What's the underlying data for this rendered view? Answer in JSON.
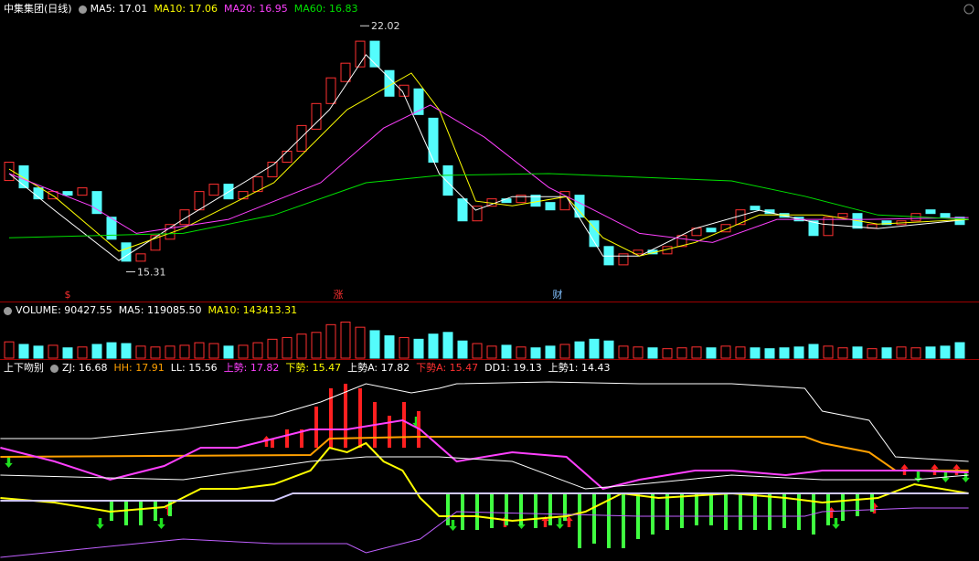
{
  "chart_data": [
    {
      "type": "candlestick",
      "title": "中集集团(日线)",
      "legend": [
        {
          "text": "MA5: 17.01",
          "color": "#ffffff"
        },
        {
          "text": "MA10: 17.06",
          "color": "#ffff00"
        },
        {
          "text": "MA20: 16.95",
          "color": "#ff40ff"
        },
        {
          "text": "MA60: 16.83",
          "color": "#00e000"
        }
      ],
      "ylim": [
        14.5,
        22.35
      ],
      "up_color": "#ff3030",
      "down_color": "#54fcfc",
      "open": [
        17.8,
        18.2,
        17.6,
        17.3,
        17.5,
        17.4,
        17.5,
        16.8,
        16.1,
        15.6,
        15.9,
        16.2,
        16.6,
        17.0,
        17.4,
        17.7,
        17.3,
        17.5,
        17.9,
        18.3,
        18.6,
        19.2,
        19.9,
        20.5,
        20.9,
        21.6,
        20.8,
        20.1,
        20.3,
        19.5,
        18.2,
        17.3,
        16.7,
        17.1,
        17.3,
        17.2,
        17.4,
        17.2,
        17.0,
        17.4,
        16.7,
        16.0,
        15.5,
        15.8,
        15.9,
        15.8,
        16.0,
        16.3,
        16.5,
        16.4,
        16.6,
        17.1,
        17.0,
        16.9,
        16.8,
        16.7,
        16.3,
        16.8,
        16.9,
        16.5,
        16.7,
        16.6,
        16.7,
        17.0,
        16.9,
        16.8
      ],
      "close": [
        18.3,
        17.6,
        17.3,
        17.5,
        17.4,
        17.6,
        16.9,
        16.2,
        15.6,
        15.8,
        16.3,
        16.6,
        17.0,
        17.5,
        17.7,
        17.3,
        17.5,
        17.9,
        18.3,
        18.6,
        19.3,
        19.9,
        20.6,
        21.0,
        21.6,
        20.9,
        20.1,
        20.4,
        19.6,
        18.3,
        17.4,
        16.7,
        17.1,
        17.3,
        17.2,
        17.4,
        17.1,
        17.0,
        17.5,
        16.8,
        16.0,
        15.5,
        15.8,
        15.9,
        15.8,
        16.0,
        16.3,
        16.5,
        16.4,
        16.6,
        17.0,
        17.0,
        16.9,
        16.8,
        16.7,
        16.3,
        16.8,
        16.9,
        16.5,
        16.6,
        16.6,
        16.7,
        16.9,
        16.9,
        16.8,
        16.6
      ],
      "series": [
        {
          "color": "#ffffff",
          "x": [
            0,
            3.1,
            7.5,
            11.9,
            18.1,
            21.9,
            24.4,
            26.9,
            29.4,
            31.9,
            34.4,
            38.1,
            40.6,
            43.1,
            46.9,
            51.3,
            55.6,
            59.4,
            65.6
          ],
          "values": [
            17.99,
            16.99,
            15.62,
            16.74,
            18.24,
            19.73,
            21.23,
            20.23,
            17.99,
            16.99,
            17.36,
            17.36,
            15.74,
            15.74,
            16.49,
            16.99,
            16.61,
            16.49,
            16.74
          ]
        },
        {
          "color": "#ffff00",
          "x": [
            0,
            3.1,
            7.5,
            11.9,
            18.1,
            23.1,
            27.5,
            29.4,
            31.9,
            34.4,
            38.1,
            40.6,
            43.1,
            46.9,
            51.3,
            55.6,
            59.4,
            65.6
          ],
          "values": [
            18.11,
            17.36,
            15.87,
            16.49,
            17.74,
            19.73,
            20.73,
            19.73,
            17.24,
            17.11,
            17.36,
            16.24,
            15.74,
            16.11,
            16.86,
            16.86,
            16.61,
            16.74
          ]
        },
        {
          "color": "#ff40ff",
          "x": [
            0,
            5.6,
            8.7,
            15,
            21.3,
            25.6,
            28.8,
            32.5,
            36.9,
            40,
            43.1,
            48.1,
            52.5,
            58.8,
            65.6
          ],
          "values": [
            17.99,
            17.11,
            16.36,
            16.74,
            17.74,
            19.23,
            19.86,
            18.98,
            17.61,
            16.99,
            16.36,
            16.11,
            16.74,
            16.74,
            16.79
          ]
        },
        {
          "color": "#00e000",
          "x": [
            0,
            11.9,
            18.1,
            24.4,
            29.4,
            36.9,
            49.4,
            54.4,
            59.4,
            65.6
          ],
          "values": [
            16.24,
            16.36,
            16.86,
            17.74,
            17.94,
            17.99,
            17.79,
            17.37,
            16.86,
            16.74
          ]
        }
      ],
      "annotations": [
        {
          "x": 24,
          "value": 22.02
        },
        {
          "x": 8,
          "value": 15.31
        }
      ],
      "events": [
        {
          "x": 4,
          "text": "$",
          "color": "#ff3030"
        },
        {
          "x": 22.5,
          "text": "涨",
          "color": "#ff3030"
        },
        {
          "x": 37.5,
          "text": "财",
          "color": "#80c0ff"
        }
      ]
    },
    {
      "type": "bar",
      "legend": [
        {
          "text": "VOLUME: 90427.55",
          "color": "#ffffff"
        },
        {
          "text": "MA5: 119085.50",
          "color": "#ffffff"
        },
        {
          "text": "MA10: 143413.31",
          "color": "#ffff00"
        }
      ],
      "ylim": [
        0,
        250000
      ],
      "values": [
        95000,
        80000,
        70000,
        75000,
        60000,
        65000,
        80000,
        90000,
        85000,
        70000,
        65000,
        70000,
        75000,
        90000,
        85000,
        70000,
        75000,
        90000,
        110000,
        120000,
        140000,
        150000,
        195000,
        210000,
        180000,
        160000,
        130000,
        120000,
        110000,
        140000,
        150000,
        100000,
        85000,
        70000,
        75000,
        65000,
        60000,
        70000,
        80000,
        95000,
        110000,
        100000,
        70000,
        65000,
        60000,
        55000,
        60000,
        65000,
        60000,
        70000,
        65000,
        60000,
        55000,
        60000,
        65000,
        80000,
        70000,
        60000,
        65000,
        55000,
        60000,
        65000,
        60000,
        65000,
        70000,
        90427.55
      ]
    },
    {
      "type": "line",
      "title": "上下吻别",
      "legend": [
        {
          "text": "ZJ: 16.68",
          "color": "#ffffff"
        },
        {
          "text": "HH: 17.91",
          "color": "#ffa000"
        },
        {
          "text": "LL: 15.56",
          "color": "#ffffff"
        },
        {
          "text": "上勢: 17.82",
          "color": "#ff40ff"
        },
        {
          "text": "下勢: 15.47",
          "color": "#ffff00"
        },
        {
          "text": "上勢A: 17.82",
          "color": "#ffffff"
        },
        {
          "text": "下勢A: 15.47",
          "color": "#ff3030"
        },
        {
          "text": "DD1: 19.13",
          "color": "#ffffff"
        },
        {
          "text": "上勢1: 14.43",
          "color": "#ffffff"
        }
      ],
      "ylim": [
        12.25,
        22.7
      ],
      "bars": [
        {
          "color": "#ff2020",
          "base": 18.45,
          "x": [
            18,
            19,
            20,
            21,
            22,
            23,
            24,
            25,
            26,
            27,
            28
          ],
          "values": [
            18.95,
            19.45,
            19.45,
            20.7,
            21.7,
            21.95,
            21.7,
            20.95,
            20.2,
            20.95,
            20.45
          ]
        },
        {
          "color": "#40ff40",
          "base": 15.55,
          "x": [
            7,
            8,
            9,
            10,
            11
          ],
          "values": [
            14.45,
            14.2,
            14.2,
            14.45,
            14.7
          ]
        },
        {
          "color": "#40ff40",
          "base": 15.95,
          "x": [
            30,
            31,
            32,
            33,
            34,
            35,
            36,
            37,
            38,
            39,
            40,
            41,
            42,
            43,
            44,
            45,
            46,
            47,
            48,
            49,
            50,
            51,
            52,
            53,
            54,
            55,
            56,
            57,
            58,
            59
          ],
          "values": [
            14.2,
            13.95,
            13.95,
            14.05,
            14.2,
            14.2,
            14.05,
            14.2,
            14.45,
            12.95,
            13.2,
            12.95,
            12.95,
            13.45,
            13.7,
            13.95,
            14.05,
            14.2,
            14.2,
            13.95,
            13.95,
            13.95,
            13.95,
            14.05,
            13.95,
            13.7,
            14.2,
            14.45,
            14.7,
            14.95
          ]
        }
      ],
      "series": [
        {
          "color": "#ffffff",
          "x": [
            -0.6,
            5.6,
            11.9,
            18.1,
            21.3,
            24.4,
            27.5,
            29.4,
            30.6,
            36.9,
            43.1,
            49.4,
            54.4,
            55.6,
            58.8,
            60.6,
            65.6
          ],
          "values": [
            18.95,
            18.95,
            19.45,
            20.2,
            20.95,
            21.95,
            21.45,
            21.7,
            21.95,
            22.05,
            21.95,
            21.95,
            21.7,
            20.45,
            19.95,
            17.95,
            17.7
          ]
        },
        {
          "color": "#ffa000",
          "width": 2,
          "x": [
            -0.6,
            20.6,
            21.9,
            28.1,
            54.4,
            55.6,
            58.8,
            60.6,
            65.6
          ],
          "values": [
            17.95,
            18.05,
            18.95,
            19.05,
            19.05,
            18.7,
            18.2,
            17.2,
            17.2
          ]
        },
        {
          "color": "#ff40ff",
          "width": 2,
          "x": [
            -0.6,
            3.1,
            6.9,
            10.6,
            13.1,
            15.6,
            18.1,
            20.6,
            23.1,
            26.9,
            28.1,
            30.6,
            34.4,
            38.1,
            40.6,
            43.1,
            46.9,
            49.4,
            53.1,
            55.6,
            59.4,
            61.9,
            65.6
          ],
          "values": [
            18.45,
            17.7,
            16.7,
            17.45,
            18.45,
            18.45,
            18.95,
            19.45,
            19.45,
            19.95,
            19.45,
            17.7,
            18.2,
            17.95,
            16.2,
            16.7,
            17.2,
            17.2,
            16.95,
            17.2,
            17.2,
            17.2,
            17.1
          ]
        },
        {
          "color": "#ffff00",
          "width": 2,
          "x": [
            -0.6,
            3.1,
            6.9,
            10.6,
            13.1,
            15.6,
            18.1,
            20.6,
            21.9,
            23.1,
            24.4,
            25.6,
            26.9,
            28.1,
            29.4,
            31.9,
            34.4,
            38.1,
            39.4,
            41.9,
            44.4,
            49.4,
            53.1,
            55.6,
            59.4,
            61.9,
            65.6
          ],
          "values": [
            15.7,
            15.45,
            14.95,
            15.2,
            16.2,
            16.2,
            16.45,
            17.2,
            18.45,
            18.2,
            18.7,
            17.7,
            17.2,
            15.7,
            14.7,
            14.7,
            14.45,
            14.7,
            14.95,
            15.95,
            15.7,
            15.95,
            15.7,
            15.45,
            15.7,
            16.45,
            15.95
          ]
        },
        {
          "color": "#d0c8ff",
          "width": 2,
          "x": [
            -0.6,
            18.1,
            19.4,
            65.6
          ],
          "values": [
            15.55,
            15.55,
            15.95,
            15.95
          ]
        },
        {
          "color": "#ffffff",
          "x": [
            -0.6,
            11.9,
            20.6,
            24.4,
            29.4,
            34.4,
            39.4,
            43.1,
            49.4,
            55.6,
            61.9,
            65.6
          ],
          "values": [
            16.95,
            16.7,
            17.7,
            17.95,
            17.95,
            17.7,
            16.2,
            16.45,
            16.95,
            16.7,
            16.7,
            16.95
          ]
        },
        {
          "color": "#c060ff",
          "x": [
            -0.6,
            5.6,
            11.9,
            18.1,
            23.1,
            24.4,
            28.1,
            30.6,
            43.1,
            54.4,
            55.6,
            61.9,
            65.6
          ],
          "values": [
            12.45,
            12.95,
            13.45,
            13.2,
            13.2,
            12.7,
            13.45,
            14.95,
            14.7,
            14.7,
            14.95,
            15.15,
            15.15
          ]
        }
      ]
    }
  ]
}
